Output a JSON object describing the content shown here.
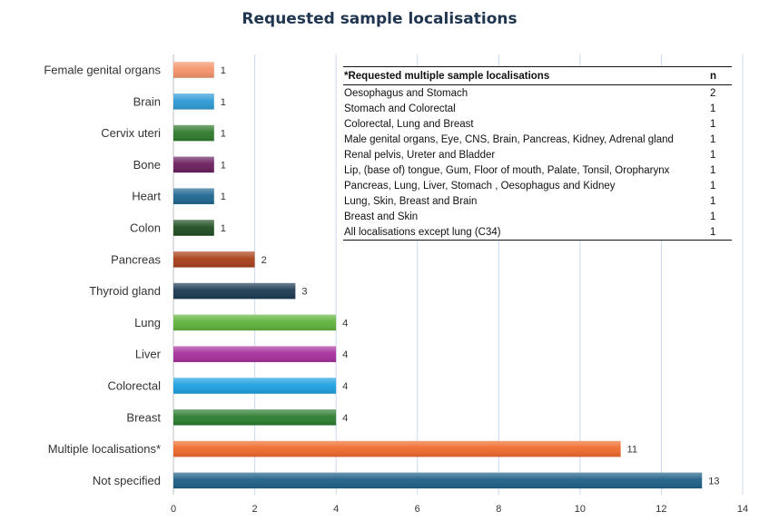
{
  "chart_data": {
    "type": "bar",
    "orientation": "horizontal",
    "title": "Requested sample localisations",
    "categories": [
      "Female genital organs",
      "Brain",
      "Cervix uteri",
      "Bone",
      "Heart",
      "Colon",
      "Pancreas",
      "Thyroid gland",
      "Lung",
      "Liver",
      "Colorectal",
      "Breast",
      "Multiple localisations*",
      "Not specified"
    ],
    "values": [
      1,
      1,
      1,
      1,
      1,
      1,
      2,
      3,
      4,
      4,
      4,
      4,
      11,
      13
    ],
    "colors": [
      "#f4936a",
      "#2e9bd6",
      "#2f7a2c",
      "#6b1f5e",
      "#1f6690",
      "#1f4d20",
      "#a8401a",
      "#1c3a52",
      "#5fb33b",
      "#a8309c",
      "#1da0e0",
      "#2c7d30",
      "#ef6a2a",
      "#1f5f86"
    ],
    "xlim": [
      0,
      14
    ],
    "xticks": [
      0,
      2,
      4,
      6,
      8,
      10,
      12,
      14
    ],
    "grid": "vertical",
    "xlabel": "",
    "ylabel": ""
  },
  "inset_table": {
    "header_label": "*Requested multiple sample localisations",
    "header_n": "n",
    "rows": [
      {
        "label": "Oesophagus and Stomach",
        "n": "2"
      },
      {
        "label": "Stomach and Colorectal",
        "n": "1"
      },
      {
        "label": "Colorectal, Lung and Breast",
        "n": "1"
      },
      {
        "label": "Male genital organs, Eye, CNS, Brain, Pancreas, Kidney, Adrenal gland",
        "n": "1"
      },
      {
        "label": "Renal pelvis, Ureter and Bladder",
        "n": "1"
      },
      {
        "label": "Lip, (base of) tongue, Gum, Floor of mouth, Palate, Tonsil, Oropharynx",
        "n": "1"
      },
      {
        "label": "Pancreas, Lung, Liver, Stomach , Oesophagus and Kidney",
        "n": "1"
      },
      {
        "label": "Lung, Skin, Breast and Brain",
        "n": "1"
      },
      {
        "label": "Breast and Skin",
        "n": "1"
      },
      {
        "label": "All localisations except lung (C34)",
        "n": "1"
      }
    ]
  }
}
